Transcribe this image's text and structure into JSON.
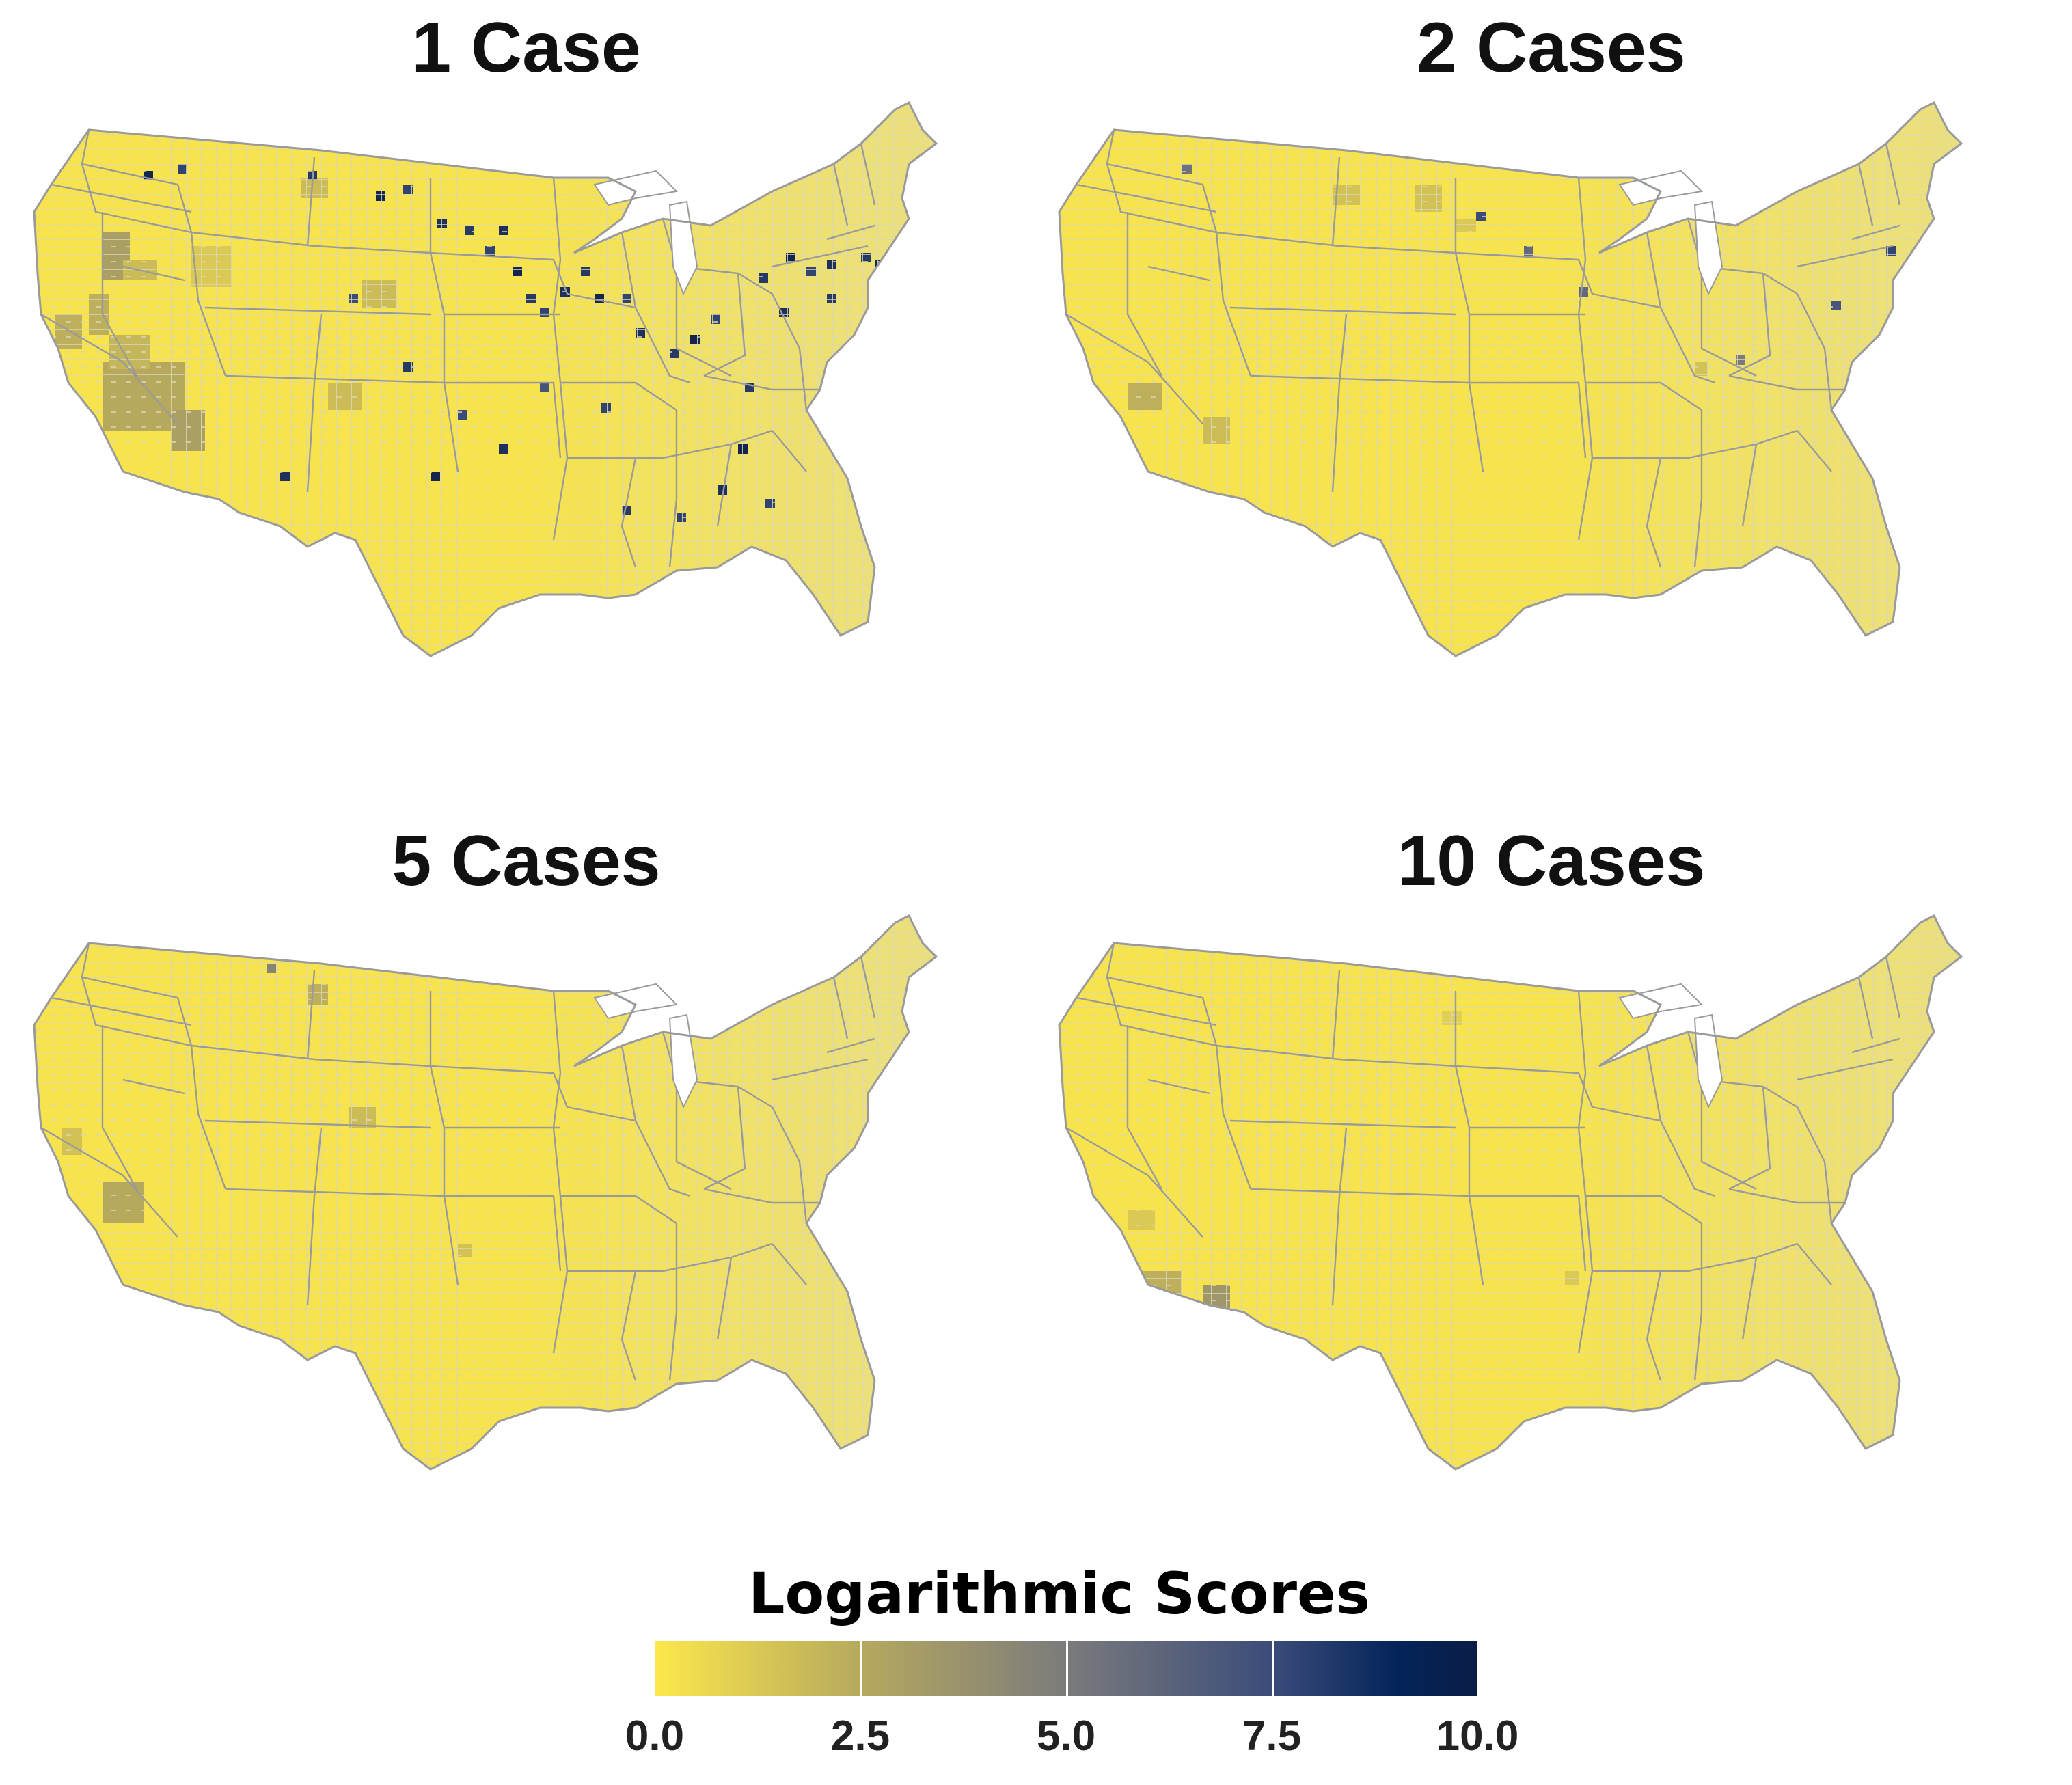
{
  "panels": [
    {
      "title": "1 Case"
    },
    {
      "title": "2 Cases"
    },
    {
      "title": "5 Cases"
    },
    {
      "title": "10 Cases"
    }
  ],
  "legend": {
    "title": "Logarithmic Scores",
    "min": 0,
    "max": 10,
    "ticks": [
      "0.0",
      "2.5",
      "5.0",
      "7.5",
      "10.0"
    ],
    "colors": [
      "#fde84b",
      "#b6a95e",
      "#7b7b7c",
      "#3b4c7a",
      "#0a1d46"
    ]
  },
  "map_style": {
    "base_fill": "#f6e34e",
    "east_fill": "#eadf80",
    "county_line": "#dcd7b4",
    "state_line": "#9a9a9a"
  }
}
